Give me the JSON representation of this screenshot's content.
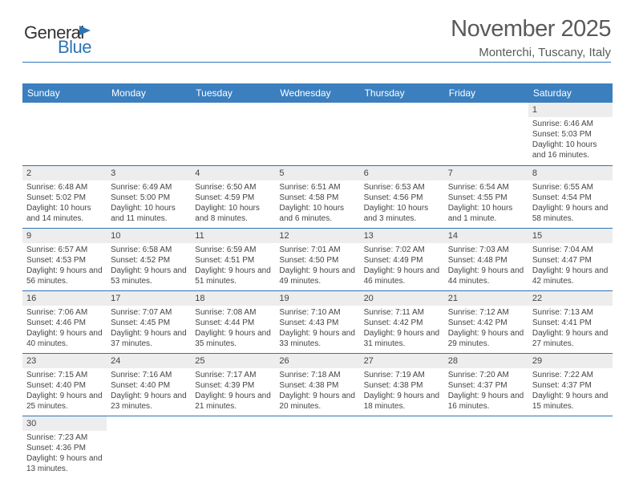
{
  "logo": {
    "part1": "General",
    "part2": "Blue"
  },
  "header": {
    "title": "November 2025",
    "location": "Monterchi, Tuscany, Italy"
  },
  "columns": [
    "Sunday",
    "Monday",
    "Tuesday",
    "Wednesday",
    "Thursday",
    "Friday",
    "Saturday"
  ],
  "colors": {
    "header_bg": "#3b7fbf",
    "rule": "#2e74b5",
    "daybar": "#ededed",
    "text": "#444444"
  },
  "weeks": [
    [
      null,
      null,
      null,
      null,
      null,
      null,
      {
        "n": "1",
        "sr": "6:46 AM",
        "ss": "5:03 PM",
        "dl": "10 hours and 16 minutes."
      }
    ],
    [
      {
        "n": "2",
        "sr": "6:48 AM",
        "ss": "5:02 PM",
        "dl": "10 hours and 14 minutes."
      },
      {
        "n": "3",
        "sr": "6:49 AM",
        "ss": "5:00 PM",
        "dl": "10 hours and 11 minutes."
      },
      {
        "n": "4",
        "sr": "6:50 AM",
        "ss": "4:59 PM",
        "dl": "10 hours and 8 minutes."
      },
      {
        "n": "5",
        "sr": "6:51 AM",
        "ss": "4:58 PM",
        "dl": "10 hours and 6 minutes."
      },
      {
        "n": "6",
        "sr": "6:53 AM",
        "ss": "4:56 PM",
        "dl": "10 hours and 3 minutes."
      },
      {
        "n": "7",
        "sr": "6:54 AM",
        "ss": "4:55 PM",
        "dl": "10 hours and 1 minute."
      },
      {
        "n": "8",
        "sr": "6:55 AM",
        "ss": "4:54 PM",
        "dl": "9 hours and 58 minutes."
      }
    ],
    [
      {
        "n": "9",
        "sr": "6:57 AM",
        "ss": "4:53 PM",
        "dl": "9 hours and 56 minutes."
      },
      {
        "n": "10",
        "sr": "6:58 AM",
        "ss": "4:52 PM",
        "dl": "9 hours and 53 minutes."
      },
      {
        "n": "11",
        "sr": "6:59 AM",
        "ss": "4:51 PM",
        "dl": "9 hours and 51 minutes."
      },
      {
        "n": "12",
        "sr": "7:01 AM",
        "ss": "4:50 PM",
        "dl": "9 hours and 49 minutes."
      },
      {
        "n": "13",
        "sr": "7:02 AM",
        "ss": "4:49 PM",
        "dl": "9 hours and 46 minutes."
      },
      {
        "n": "14",
        "sr": "7:03 AM",
        "ss": "4:48 PM",
        "dl": "9 hours and 44 minutes."
      },
      {
        "n": "15",
        "sr": "7:04 AM",
        "ss": "4:47 PM",
        "dl": "9 hours and 42 minutes."
      }
    ],
    [
      {
        "n": "16",
        "sr": "7:06 AM",
        "ss": "4:46 PM",
        "dl": "9 hours and 40 minutes."
      },
      {
        "n": "17",
        "sr": "7:07 AM",
        "ss": "4:45 PM",
        "dl": "9 hours and 37 minutes."
      },
      {
        "n": "18",
        "sr": "7:08 AM",
        "ss": "4:44 PM",
        "dl": "9 hours and 35 minutes."
      },
      {
        "n": "19",
        "sr": "7:10 AM",
        "ss": "4:43 PM",
        "dl": "9 hours and 33 minutes."
      },
      {
        "n": "20",
        "sr": "7:11 AM",
        "ss": "4:42 PM",
        "dl": "9 hours and 31 minutes."
      },
      {
        "n": "21",
        "sr": "7:12 AM",
        "ss": "4:42 PM",
        "dl": "9 hours and 29 minutes."
      },
      {
        "n": "22",
        "sr": "7:13 AM",
        "ss": "4:41 PM",
        "dl": "9 hours and 27 minutes."
      }
    ],
    [
      {
        "n": "23",
        "sr": "7:15 AM",
        "ss": "4:40 PM",
        "dl": "9 hours and 25 minutes."
      },
      {
        "n": "24",
        "sr": "7:16 AM",
        "ss": "4:40 PM",
        "dl": "9 hours and 23 minutes."
      },
      {
        "n": "25",
        "sr": "7:17 AM",
        "ss": "4:39 PM",
        "dl": "9 hours and 21 minutes."
      },
      {
        "n": "26",
        "sr": "7:18 AM",
        "ss": "4:38 PM",
        "dl": "9 hours and 20 minutes."
      },
      {
        "n": "27",
        "sr": "7:19 AM",
        "ss": "4:38 PM",
        "dl": "9 hours and 18 minutes."
      },
      {
        "n": "28",
        "sr": "7:20 AM",
        "ss": "4:37 PM",
        "dl": "9 hours and 16 minutes."
      },
      {
        "n": "29",
        "sr": "7:22 AM",
        "ss": "4:37 PM",
        "dl": "9 hours and 15 minutes."
      }
    ],
    [
      {
        "n": "30",
        "sr": "7:23 AM",
        "ss": "4:36 PM",
        "dl": "9 hours and 13 minutes."
      },
      null,
      null,
      null,
      null,
      null,
      null
    ]
  ],
  "labels": {
    "sunrise": "Sunrise: ",
    "sunset": "Sunset: ",
    "daylight": "Daylight: "
  }
}
